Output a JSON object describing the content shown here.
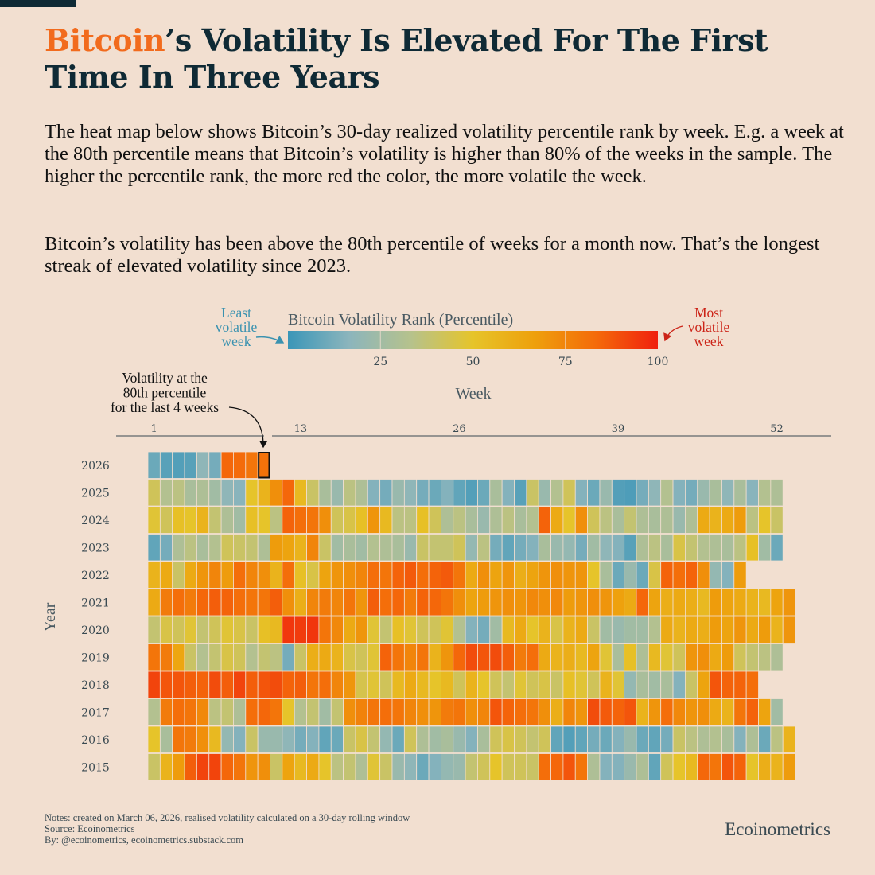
{
  "header": {
    "title_accent": "Bitcoin",
    "title_rest": "’s Volatility Is Elevated For The First Time In Three Years"
  },
  "description": {
    "paragraph1": "The heat map below shows Bitcoin’s 30-day realized volatility percentile rank by week. E.g. a week at the 80th percentile means that Bitcoin’s volatility is higher than 80% of the weeks in the sample. The higher the percentile rank, the more red the color, the more volatile the week.",
    "paragraph2": "Bitcoin’s volatility has been above the 80th percentile of weeks for a month now. That’s the longest streak of elevated volatility since 2023."
  },
  "colors": {
    "background": "#f2dfd0",
    "title": "#0f2a35",
    "accent": "#f26b1d",
    "least": "#3a92b0",
    "most": "#cc2418",
    "scale": [
      "#3a96b8",
      "#8cb5bc",
      "#b6c28c",
      "#e6c42a",
      "#eea00c",
      "#f46a0a",
      "#f0200e"
    ]
  },
  "chart_data": {
    "type": "heatmap",
    "title": "Bitcoin Volatility Rank (Percentile)",
    "xlabel": "Week",
    "ylabel": "Year",
    "x_ticks": [
      1,
      13,
      26,
      39,
      52
    ],
    "x_tick_labels": [
      "1",
      "13",
      "26",
      "39",
      "52"
    ],
    "legend": {
      "title": "Bitcoin Volatility Rank (Percentile)",
      "ticks": [
        25,
        50,
        75,
        100
      ],
      "tick_labels": [
        "25",
        "50",
        "75",
        "100"
      ],
      "range": [
        0,
        100
      ],
      "low_label": [
        "Least",
        "volatile",
        "week"
      ],
      "high_label": [
        "Most",
        "volatile",
        "week"
      ]
    },
    "annotation": {
      "lines": [
        "Volatility at the",
        "80th percentile",
        "for the last 4 weeks"
      ],
      "year": "2026",
      "week": 10
    },
    "years": [
      "2026",
      "2025",
      "2024",
      "2023",
      "2022",
      "2021",
      "2020",
      "2019",
      "2018",
      "2017",
      "2016",
      "2015"
    ],
    "values": [
      [
        10,
        6,
        5,
        6,
        18,
        12,
        84,
        83,
        80,
        81
      ],
      [
        42,
        32,
        35,
        28,
        30,
        25,
        18,
        16,
        50,
        58,
        72,
        84,
        55,
        40,
        28,
        22,
        35,
        30,
        15,
        12,
        22,
        18,
        12,
        10,
        15,
        8,
        5,
        10,
        28,
        15,
        6,
        40,
        22,
        32,
        42,
        15,
        10,
        22,
        5,
        4,
        12,
        18,
        32,
        15,
        12,
        22,
        28,
        18,
        28,
        16,
        32,
        30
      ],
      [
        48,
        42,
        52,
        50,
        58,
        38,
        30,
        25,
        52,
        50,
        35,
        85,
        82,
        80,
        72,
        42,
        45,
        52,
        70,
        55,
        35,
        35,
        52,
        42,
        30,
        35,
        28,
        22,
        30,
        35,
        28,
        32,
        85,
        62,
        50,
        72,
        42,
        35,
        28,
        38,
        30,
        28,
        30,
        22,
        30,
        62,
        58,
        62,
        68,
        35,
        50,
        40
      ],
      [
        8,
        12,
        30,
        35,
        28,
        32,
        42,
        40,
        38,
        30,
        68,
        65,
        58,
        75,
        40,
        25,
        28,
        25,
        32,
        30,
        28,
        22,
        40,
        38,
        38,
        42,
        20,
        35,
        12,
        8,
        12,
        15,
        28,
        22,
        20,
        12,
        25,
        18,
        15,
        6,
        30,
        35,
        28,
        45,
        38,
        32,
        30,
        28,
        35,
        52,
        25,
        10
      ],
      [
        58,
        62,
        40,
        62,
        70,
        75,
        68,
        82,
        75,
        72,
        58,
        82,
        52,
        45,
        65,
        70,
        72,
        75,
        82,
        80,
        85,
        87,
        82,
        85,
        87,
        80,
        62,
        72,
        65,
        70,
        60,
        65,
        70,
        72,
        70,
        70,
        50,
        28,
        10,
        22,
        10,
        45,
        85,
        82,
        85,
        72,
        20,
        15,
        68
      ],
      [
        62,
        78,
        82,
        78,
        84,
        86,
        85,
        82,
        80,
        80,
        86,
        72,
        60,
        75,
        78,
        75,
        80,
        70,
        86,
        82,
        84,
        78,
        85,
        84,
        80,
        72,
        65,
        68,
        70,
        72,
        70,
        74,
        72,
        74,
        68,
        70,
        72,
        70,
        66,
        62,
        84,
        65,
        60,
        62,
        60,
        55,
        68,
        65,
        62,
        58,
        55,
        65,
        70
      ],
      [
        38,
        45,
        42,
        48,
        38,
        42,
        48,
        45,
        40,
        52,
        55,
        95,
        94,
        95,
        80,
        74,
        62,
        70,
        48,
        38,
        52,
        48,
        42,
        42,
        48,
        32,
        15,
        12,
        25,
        55,
        62,
        50,
        58,
        45,
        58,
        62,
        40,
        25,
        22,
        25,
        25,
        32,
        62,
        58,
        62,
        60,
        68,
        65,
        70,
        62,
        68,
        58,
        70
      ],
      [
        80,
        78,
        64,
        40,
        32,
        38,
        45,
        42,
        32,
        38,
        35,
        12,
        40,
        60,
        62,
        58,
        45,
        42,
        48,
        85,
        80,
        75,
        80,
        58,
        70,
        84,
        90,
        88,
        90,
        86,
        78,
        82,
        62,
        58,
        60,
        55,
        65,
        48,
        28,
        52,
        30,
        55,
        48,
        42,
        70,
        72,
        62,
        68,
        42,
        38,
        35,
        30
      ],
      [
        92,
        88,
        88,
        86,
        85,
        90,
        86,
        92,
        86,
        88,
        90,
        85,
        86,
        80,
        82,
        75,
        70,
        44,
        48,
        42,
        55,
        62,
        55,
        50,
        55,
        42,
        58,
        50,
        42,
        38,
        48,
        42,
        45,
        40,
        52,
        48,
        42,
        58,
        48,
        20,
        28,
        25,
        28,
        15,
        40,
        65,
        88,
        85,
        85,
        82
      ],
      [
        32,
        78,
        82,
        80,
        74,
        35,
        38,
        30,
        82,
        84,
        80,
        50,
        32,
        38,
        25,
        38,
        72,
        76,
        80,
        82,
        80,
        75,
        72,
        70,
        78,
        80,
        72,
        75,
        88,
        85,
        82,
        80,
        72,
        60,
        75,
        70,
        90,
        87,
        85,
        88,
        58,
        70,
        82,
        74,
        70,
        72,
        62,
        58,
        80,
        85,
        65,
        25
      ],
      [
        50,
        28,
        80,
        78,
        72,
        55,
        20,
        15,
        40,
        22,
        22,
        18,
        12,
        15,
        8,
        10,
        40,
        45,
        38,
        20,
        10,
        42,
        30,
        25,
        28,
        22,
        15,
        28,
        42,
        45,
        42,
        38,
        42,
        8,
        5,
        8,
        12,
        10,
        15,
        22,
        10,
        8,
        12,
        40,
        35,
        30,
        32,
        28,
        15,
        30,
        10,
        35,
        58
      ],
      [
        40,
        58,
        68,
        86,
        92,
        92,
        84,
        80,
        70,
        72,
        40,
        65,
        55,
        62,
        50,
        35,
        38,
        30,
        48,
        40,
        22,
        18,
        10,
        15,
        20,
        22,
        38,
        42,
        50,
        42,
        42,
        40,
        82,
        84,
        88,
        80,
        30,
        15,
        15,
        22,
        30,
        8,
        42,
        50,
        55,
        84,
        80,
        88,
        85,
        50,
        60,
        58,
        68
      ]
    ]
  },
  "footer": {
    "notes": "Notes: created on March 06, 2026, realised volatility calculated on a 30-day rolling window",
    "source": "Source: Ecoinometrics",
    "by": "By: @ecoinometrics, ecoinometrics.substack.com",
    "brand": "Ecoinometrics"
  }
}
